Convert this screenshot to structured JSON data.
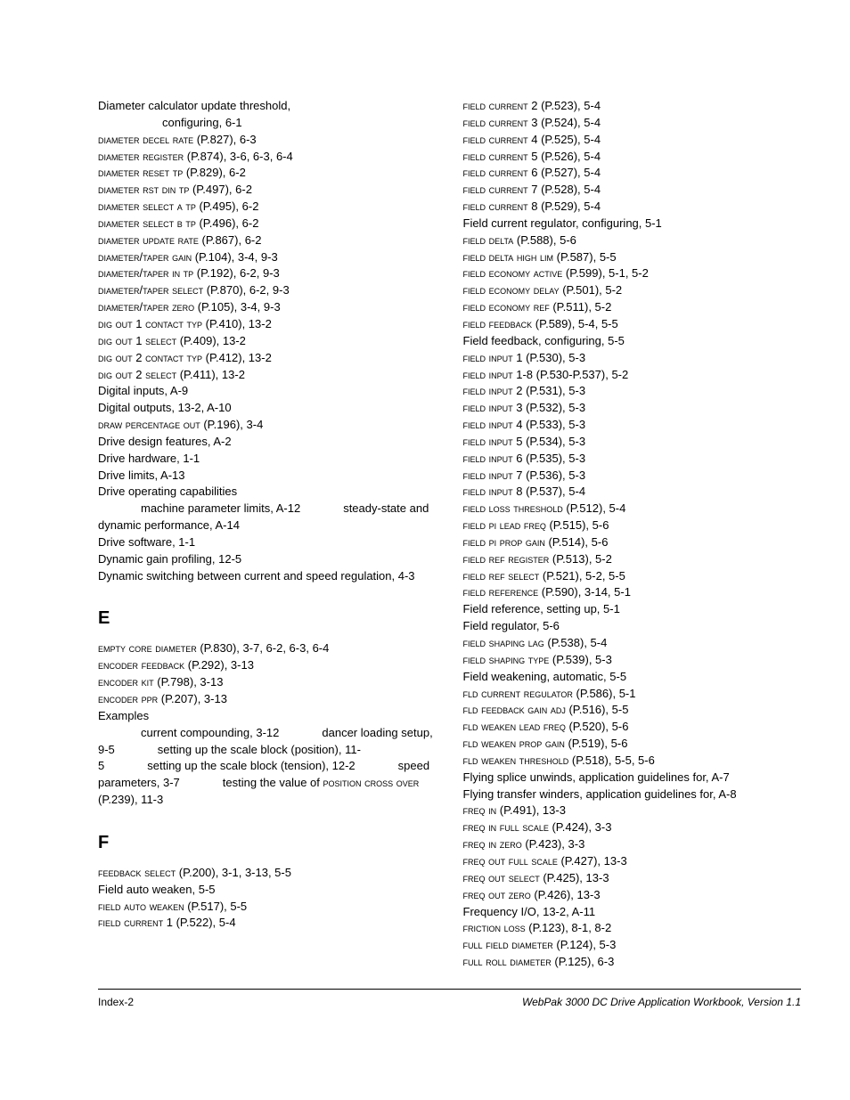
{
  "left": {
    "d": [
      {
        "t": "Diameter calculator update threshold,"
      },
      {
        "t": "configuring, 6-1",
        "cls": "sub2"
      },
      {
        "sc": "DIAMETER DECEL RATE",
        "rest": " (P.827), 6-3"
      },
      {
        "sc": "DIAMETER REGISTER",
        "rest": " (P.874), 3-6, 6-3, 6-4"
      },
      {
        "sc": "DIAMETER RESET TP",
        "rest": " (P.829), 6-2"
      },
      {
        "sc": "DIAMETER RST DIN TP",
        "rest": " (P.497), 6-2"
      },
      {
        "sc": "DIAMETER SELECT A TP",
        "rest": " (P.495), 6-2"
      },
      {
        "sc": "DIAMETER SELECT B TP",
        "rest": " (P.496), 6-2"
      },
      {
        "sc": "DIAMETER UPDATE RATE",
        "rest": " (P.867), 6-2"
      },
      {
        "sc": "DIAMETER/TAPER GAIN",
        "rest": " (P.104), 3-4, 9-3"
      },
      {
        "sc": "DIAMETER/TAPER IN TP",
        "rest": " (P.192), 6-2, 9-3"
      },
      {
        "sc": "DIAMETER/TAPER SELECT",
        "rest": " (P.870), 6-2, 9-3"
      },
      {
        "sc": "DIAMETER/TAPER ZERO",
        "rest": " (P.105), 3-4, 9-3"
      },
      {
        "sc": "DIG OUT 1 CONTACT TYP",
        "rest": " (P.410), 13-2"
      },
      {
        "sc": "DIG OUT 1 SELECT",
        "rest": " (P.409), 13-2"
      },
      {
        "sc": "DIG OUT 2 CONTACT TYP",
        "rest": " (P.412), 13-2"
      },
      {
        "sc": "DIG OUT 2 SELECT",
        "rest": " (P.411), 13-2"
      },
      {
        "t": "Digital inputs, A-9"
      },
      {
        "t": "Digital outputs, 13-2, A-10"
      },
      {
        "sc": "DRAW PERCENTAGE OUT",
        "rest": " (P.196), 3-4"
      },
      {
        "t": "Drive design features, A-2"
      },
      {
        "t": "Drive hardware, 1-1"
      },
      {
        "t": "Drive limits, A-13"
      },
      {
        "t": "Drive operating capabilities"
      },
      {
        "t": "machine parameter limits, A-12",
        "cls": "sub"
      },
      {
        "t": "steady-state and dynamic performance, A-14",
        "cls": "sub"
      },
      {
        "t": "Drive software, 1-1"
      },
      {
        "t": "Dynamic gain profiling, 12-5"
      },
      {
        "t": "Dynamic switching between current and speed regulation, 4-3"
      }
    ],
    "e_title": "E",
    "e": [
      {
        "sc": "EMPTY CORE DIAMETER",
        "rest": " (P.830), 3-7, 6-2, 6-3, 6-4"
      },
      {
        "sc": "ENCODER FEEDBACK",
        "rest": " (P.292), 3-13"
      },
      {
        "sc": "ENCODER KIT",
        "rest": " (P.798), 3-13"
      },
      {
        "sc": "ENCODER PPR",
        "rest": " (P.207), 3-13"
      },
      {
        "t": "Examples"
      },
      {
        "t": "current compounding, 3-12",
        "cls": "sub"
      },
      {
        "t": "dancer loading setup, 9-5",
        "cls": "sub"
      },
      {
        "t": "setting up the scale block (position), 11-5",
        "cls": "sub"
      },
      {
        "t": "setting up the scale block (tension), 12-2",
        "cls": "sub"
      },
      {
        "t": "speed parameters, 3-7",
        "cls": "sub"
      },
      {
        "pre": "testing the value of ",
        "sc": "POSITION CROSS OVER",
        "rest": " (P.239), 11-3",
        "cls": "sub"
      }
    ],
    "f_title": "F",
    "f": [
      {
        "sc": "FEEDBACK SELECT",
        "rest": " (P.200), 3-1, 3-13, 5-5"
      },
      {
        "t": "Field auto weaken, 5-5"
      },
      {
        "sc": "FIELD AUTO WEAKEN",
        "rest": " (P.517), 5-5"
      },
      {
        "sc": "FIELD CURRENT 1",
        "rest": " (P.522), 5-4"
      }
    ]
  },
  "right": [
    {
      "sc": "FIELD CURRENT 2",
      "rest": " (P.523), 5-4"
    },
    {
      "sc": "FIELD CURRENT 3",
      "rest": " (P.524), 5-4"
    },
    {
      "sc": "FIELD CURRENT 4",
      "rest": " (P.525), 5-4"
    },
    {
      "sc": "FIELD CURRENT 5",
      "rest": " (P.526), 5-4"
    },
    {
      "sc": "FIELD CURRENT 6",
      "rest": " (P.527), 5-4"
    },
    {
      "sc": "FIELD CURRENT 7",
      "rest": " (P.528), 5-4"
    },
    {
      "sc": "FIELD CURRENT 8",
      "rest": " (P.529), 5-4"
    },
    {
      "t": "Field current regulator, configuring, 5-1"
    },
    {
      "sc": "FIELD DELTA",
      "rest": " (P.588), 5-6"
    },
    {
      "sc": "FIELD DELTA HIGH LIM",
      "rest": " (P.587), 5-5"
    },
    {
      "sc": "FIELD ECONOMY ACTIVE",
      "rest": " (P.599), 5-1, 5-2"
    },
    {
      "sc": "FIELD ECONOMY DELAY",
      "rest": " (P.501), 5-2"
    },
    {
      "sc": "FIELD ECONOMY REF",
      "rest": " (P.511), 5-2"
    },
    {
      "sc": "FIELD FEEDBACK",
      "rest": " (P.589), 5-4, 5-5"
    },
    {
      "t": "Field feedback, configuring, 5-5"
    },
    {
      "sc": "FIELD INPUT 1",
      "rest": " (P.530), 5-3"
    },
    {
      "sc": "FIELD INPUT 1-8",
      "rest": " (P.530-P.537), 5-2"
    },
    {
      "sc": "FIELD INPUT 2",
      "rest": " (P.531), 5-3"
    },
    {
      "sc": "FIELD INPUT 3",
      "rest": " (P.532), 5-3"
    },
    {
      "sc": "FIELD INPUT 4",
      "rest": " (P.533), 5-3"
    },
    {
      "sc": "FIELD INPUT 5",
      "rest": " (P.534), 5-3"
    },
    {
      "sc": "FIELD INPUT 6",
      "rest": " (P.535), 5-3"
    },
    {
      "sc": "FIELD INPUT 7",
      "rest": " (P.536), 5-3"
    },
    {
      "sc": "FIELD INPUT 8",
      "rest": " (P.537), 5-4"
    },
    {
      "sc": "FIELD LOSS THRESHOLD",
      "rest": " (P.512), 5-4"
    },
    {
      "sc": "FIELD PI LEAD FREQ",
      "rest": " (P.515), 5-6"
    },
    {
      "sc": "FIELD PI PROP GAIN",
      "rest": " (P.514), 5-6"
    },
    {
      "sc": "FIELD REF REGISTER",
      "rest": " (P.513), 5-2"
    },
    {
      "sc": "FIELD REF SELECT",
      "rest": " (P.521), 5-2, 5-5"
    },
    {
      "sc": "FIELD REFERENCE",
      "rest": " (P.590), 3-14, 5-1"
    },
    {
      "t": "Field reference, setting up, 5-1"
    },
    {
      "t": "Field regulator, 5-6"
    },
    {
      "sc": "FIELD SHAPING LAG",
      "rest": " (P.538), 5-4"
    },
    {
      "sc": "FIELD SHAPING TYPE",
      "rest": " (P.539), 5-3"
    },
    {
      "t": "Field weakening, automatic, 5-5"
    },
    {
      "sc": "FLD CURRENT REGULATOR",
      "rest": " (P.586), 5-1"
    },
    {
      "sc": "FLD FEEDBACK GAIN ADJ",
      "rest": " (P.516), 5-5"
    },
    {
      "sc": "FLD WEAKEN LEAD FREQ",
      "rest": " (P.520), 5-6"
    },
    {
      "sc": "FLD WEAKEN PROP GAIN",
      "rest": " (P.519), 5-6"
    },
    {
      "sc": "FLD WEAKEN THRESHOLD",
      "rest": " (P.518), 5-5, 5-6"
    },
    {
      "t": "Flying splice unwinds, application guidelines for, A-7"
    },
    {
      "t": "Flying transfer winders, application guidelines for, A-8"
    },
    {
      "sc": "FREQ IN",
      "rest": " (P.491), 13-3"
    },
    {
      "sc": "FREQ IN FULL SCALE",
      "rest": " (P.424), 3-3"
    },
    {
      "sc": "FREQ IN ZERO",
      "rest": " (P.423), 3-3"
    },
    {
      "sc": "FREQ OUT FULL SCALE",
      "rest": " (P.427), 13-3"
    },
    {
      "sc": "FREQ OUT SELECT",
      "rest": " (P.425), 13-3"
    },
    {
      "sc": "FREQ OUT ZERO",
      "rest": " (P.426), 13-3"
    },
    {
      "t": "Frequency I/O, 13-2, A-11"
    },
    {
      "sc": "FRICTION LOSS",
      "rest": " (P.123), 8-1, 8-2"
    },
    {
      "sc": "FULL FIELD DIAMETER",
      "rest": " (P.124), 5-3"
    },
    {
      "sc": "FULL ROLL DIAMETER",
      "rest": " (P.125), 6-3"
    }
  ],
  "footer": {
    "left": "Index-2",
    "right": "WebPak 3000 DC Drive Application Workbook, Version 1.1"
  }
}
